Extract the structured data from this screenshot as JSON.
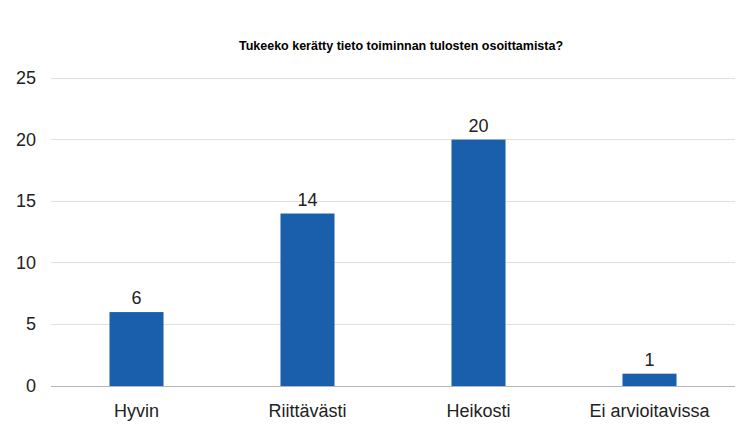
{
  "chart_data": {
    "type": "bar",
    "title": "Tukeeko kerätty tieto toiminnan tulosten osoittamista?",
    "categories": [
      "Hyvin",
      "Riittävästi",
      "Heikosti",
      "Ei arvioitavissa"
    ],
    "values": [
      6,
      14,
      20,
      1
    ],
    "color": "#1a5fab",
    "ylim": [
      0,
      25
    ],
    "yticks": [
      0,
      5,
      10,
      15,
      20,
      25
    ],
    "grid": true,
    "data_labels": true
  }
}
